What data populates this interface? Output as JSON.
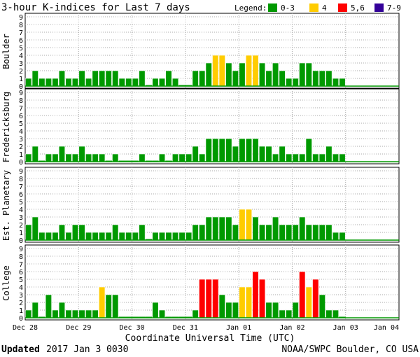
{
  "colors": {
    "quiet": "#009900",
    "k4": "#ffcc00",
    "k56": "#ff0000",
    "k79": "#330099",
    "grid": "#aaaaaa"
  },
  "chart_data": {
    "type": "bar",
    "title": "3-hour K-indices for Last 7 days",
    "legend": {
      "title": "Legend:",
      "position": "top-right",
      "entries": [
        {
          "label": "0-3",
          "color": "#009900"
        },
        {
          "label": "4",
          "color": "#ffcc00"
        },
        {
          "label": "5,6",
          "color": "#ff0000"
        },
        {
          "label": "7-9",
          "color": "#330099"
        }
      ]
    },
    "ylim": [
      0,
      9
    ],
    "yticks": [
      "0",
      "1",
      "2",
      "3",
      "4",
      "5",
      "6",
      "7",
      "8",
      "9"
    ],
    "xlabel": "Coordinate Universal Time (UTC)",
    "xticks": [
      "Dec 28",
      "Dec 29",
      "Dec 30",
      "Dec 31",
      "Jan 01",
      "Jan 02",
      "Jan 03",
      "Jan 04"
    ],
    "bins_per_day": 8,
    "days": 7,
    "grid": true,
    "series": [
      {
        "name": "Boulder",
        "values": [
          1,
          2,
          1,
          1,
          1,
          2,
          1,
          1,
          2,
          1,
          2,
          2,
          2,
          2,
          1,
          1,
          1,
          2,
          0,
          1,
          1,
          2,
          1,
          0,
          0,
          2,
          2,
          3,
          4,
          4,
          3,
          2,
          3,
          4,
          4,
          3,
          2,
          3,
          2,
          1,
          1,
          3,
          3,
          2,
          2,
          2,
          1,
          1
        ]
      },
      {
        "name": "Fredericksburg",
        "values": [
          1,
          2,
          0,
          1,
          1,
          2,
          1,
          1,
          2,
          1,
          1,
          1,
          0,
          1,
          0,
          0,
          0,
          1,
          0,
          0,
          1,
          0,
          1,
          1,
          1,
          2,
          1,
          3,
          3,
          3,
          3,
          2,
          3,
          3,
          3,
          2,
          2,
          1,
          2,
          1,
          1,
          1,
          3,
          1,
          1,
          2,
          1,
          1
        ]
      },
      {
        "name": "Est. Planetary",
        "values": [
          2,
          3,
          1,
          1,
          1,
          2,
          1,
          2,
          2,
          1,
          1,
          1,
          1,
          2,
          1,
          1,
          1,
          2,
          0,
          1,
          1,
          1,
          1,
          1,
          1,
          2,
          2,
          3,
          3,
          3,
          3,
          2,
          4,
          4,
          3,
          2,
          2,
          3,
          2,
          2,
          2,
          3,
          2,
          2,
          2,
          2,
          1,
          1
        ]
      },
      {
        "name": "College",
        "values": [
          1,
          2,
          0,
          3,
          1,
          2,
          1,
          1,
          1,
          1,
          1,
          4,
          3,
          3,
          0,
          0,
          0,
          0,
          0,
          2,
          1,
          0,
          0,
          0,
          0,
          1,
          5,
          5,
          5,
          3,
          2,
          2,
          4,
          4,
          6,
          5,
          2,
          2,
          1,
          1,
          2,
          6,
          4,
          5,
          3,
          1,
          1,
          0
        ]
      }
    ]
  },
  "footer": {
    "updated_label": "Updated",
    "updated_value": "2017 Jan  3 0030",
    "credit": "NOAA/SWPC Boulder, CO USA"
  }
}
